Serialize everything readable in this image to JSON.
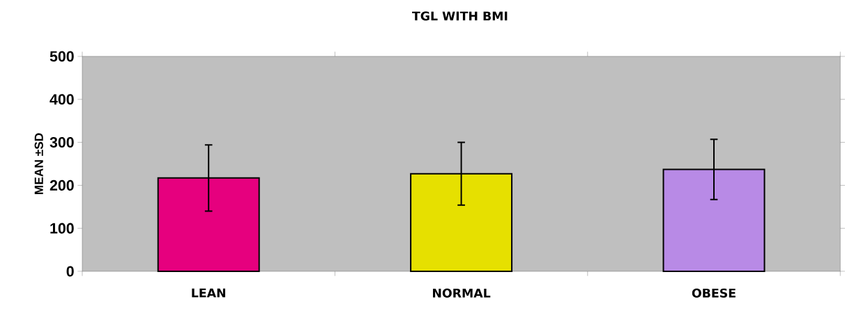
{
  "chart_data": {
    "type": "bar",
    "title": "TGL WITH BMI",
    "ylabel": "MEAN ±SD",
    "categories": [
      "LEAN",
      "NORMAL",
      "OBESE"
    ],
    "values": [
      217,
      227,
      237
    ],
    "errors": [
      77,
      73,
      70
    ],
    "colors": [
      "#e6007e",
      "#e6e000",
      "#b88ae6"
    ],
    "ylim": [
      0,
      500
    ],
    "yticks": [
      0,
      100,
      200,
      300,
      400,
      500
    ],
    "grid": false
  }
}
